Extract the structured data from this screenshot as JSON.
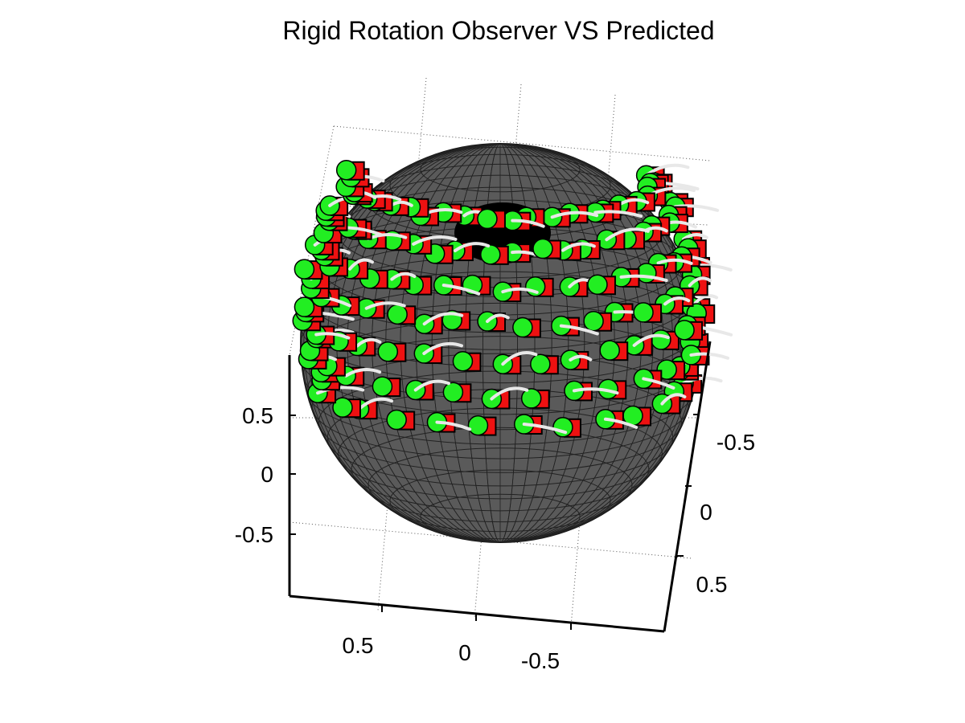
{
  "chart_data": {
    "type": "scatter",
    "title": "Rigid Rotation Observer VS Predicted",
    "xlabel": "",
    "ylabel": "",
    "zlabel": "",
    "projection": "3d",
    "grid": true,
    "surface": "unit sphere (gray mesh)",
    "x_ticks": [
      "0.5",
      "0",
      "-0.5"
    ],
    "y_ticks": [
      "-0.5",
      "0",
      "0.5"
    ],
    "z_ticks": [
      "0.5",
      "0",
      "-0.5"
    ],
    "xlim": [
      -1,
      1
    ],
    "ylim": [
      -1,
      1
    ],
    "zlim": [
      -1,
      1
    ],
    "series": [
      {
        "marker": "circle",
        "color": "#22ee22"
      },
      {
        "marker": "square",
        "color": "#ee1111"
      },
      {
        "marker": "line",
        "color": "#e8e8e8"
      }
    ]
  }
}
